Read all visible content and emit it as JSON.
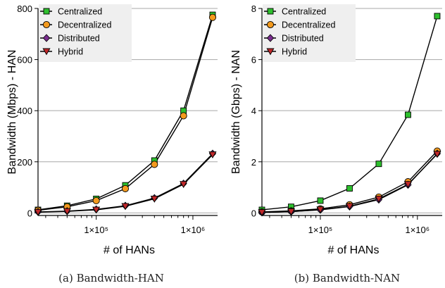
{
  "chart_data": [
    {
      "type": "line",
      "xlabel": "# of HANs",
      "ylabel": "Bandwidth (Mbps) - HAN",
      "caption": "(a) Bandwidth-HAN",
      "x_scale": "log",
      "xlim": [
        25000,
        1800000
      ],
      "ylim": [
        -10,
        800
      ],
      "yticks": [
        "0",
        "200",
        "400",
        "600",
        "800"
      ],
      "xticks": [
        {
          "value": 100000,
          "label": "1×10⁵"
        },
        {
          "value": 1000000,
          "label": "1×10⁶"
        }
      ],
      "grid": "horizontal",
      "legend_position": "top-left",
      "x": [
        25000,
        50000,
        100000,
        200000,
        400000,
        800000,
        1600000
      ],
      "series": [
        {
          "name": "Centralized",
          "marker": "square",
          "color": "#2dbf2d",
          "values": [
            12,
            28,
            55,
            108,
            205,
            400,
            775
          ]
        },
        {
          "name": "Decentralized",
          "marker": "circle",
          "color": "#f39a1e",
          "values": [
            10,
            24,
            48,
            95,
            190,
            380,
            765
          ]
        },
        {
          "name": "Distributed",
          "marker": "diamond",
          "color": "#7a2c8f",
          "values": [
            4,
            7,
            14,
            28,
            58,
            115,
            232
          ]
        },
        {
          "name": "Hybrid",
          "marker": "triangle-down",
          "color": "#c0282a",
          "values": [
            3,
            6,
            12,
            26,
            55,
            112,
            228
          ]
        }
      ]
    },
    {
      "type": "line",
      "xlabel": "# of HANs",
      "ylabel": "Bandwidth (Gbps) - NAN",
      "caption": "(b) Bandwidth-NAN",
      "x_scale": "log",
      "xlim": [
        25000,
        1800000
      ],
      "ylim": [
        -0.1,
        8
      ],
      "yticks": [
        "0",
        "2",
        "4",
        "6",
        "8"
      ],
      "xticks": [
        {
          "value": 100000,
          "label": "1×10⁵"
        },
        {
          "value": 1000000,
          "label": "1×10⁶"
        }
      ],
      "grid": "horizontal",
      "legend_position": "top-left",
      "x": [
        25000,
        50000,
        100000,
        200000,
        400000,
        800000,
        1600000
      ],
      "series": [
        {
          "name": "Centralized",
          "marker": "square",
          "color": "#2dbf2d",
          "values": [
            0.12,
            0.24,
            0.48,
            0.96,
            1.92,
            3.84,
            7.7
          ]
        },
        {
          "name": "Decentralized",
          "marker": "circle",
          "color": "#f39a1e",
          "values": [
            0.04,
            0.08,
            0.16,
            0.32,
            0.62,
            1.22,
            2.42
          ]
        },
        {
          "name": "Distributed",
          "marker": "diamond",
          "color": "#7a2c8f",
          "values": [
            0.02,
            0.05,
            0.12,
            0.25,
            0.52,
            1.1,
            2.32
          ]
        },
        {
          "name": "Hybrid",
          "marker": "triangle-down",
          "color": "#c0282a",
          "values": [
            0.02,
            0.05,
            0.13,
            0.26,
            0.55,
            1.12,
            2.3
          ]
        }
      ]
    }
  ]
}
